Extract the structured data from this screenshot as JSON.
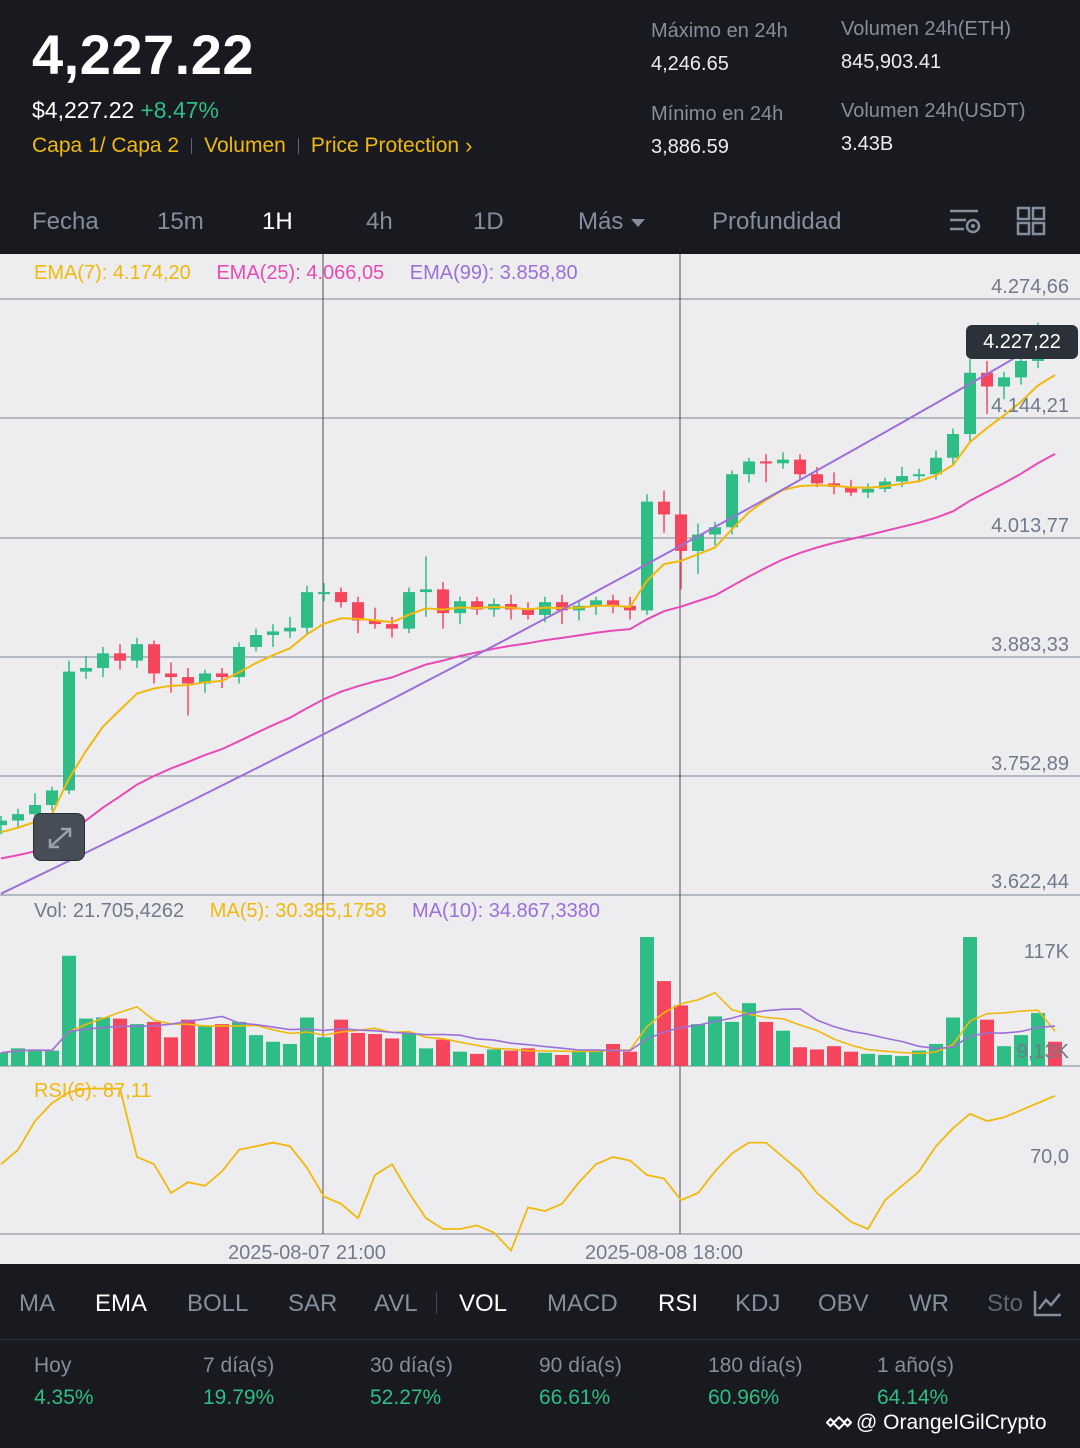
{
  "header": {
    "last_price": "4,227.22",
    "fiat_price": "$4,227.22",
    "change_pct": "+8.47%",
    "tags": [
      "Capa 1/ Capa 2",
      "Volumen",
      "Price Protection"
    ],
    "stats": {
      "high_label": "Máximo en 24h",
      "high_value": "4,246.65",
      "low_label": "Mínimo en 24h",
      "low_value": "3,886.59",
      "vol_eth_label": "Volumen 24h(ETH)",
      "vol_eth_value": "845,903.41",
      "vol_usdt_label": "Volumen 24h(USDT)",
      "vol_usdt_value": "3.43B"
    }
  },
  "time_tabs": [
    "Fecha",
    "15m",
    "1H",
    "4h",
    "1D",
    "Más",
    "Profundidad"
  ],
  "active_time_tab": "1H",
  "icons": [
    "chart-settings-icon",
    "grid-layout-icon",
    "expand-icon",
    "indicator-chart-icon",
    "binance-logo-icon"
  ],
  "colors": {
    "up": "#2ebd85",
    "down": "#f6465d",
    "ema7": "#f0b90b",
    "ema25": "#e84ab5",
    "ema99": "#9c6fd6",
    "accent": "#f0b90b"
  },
  "legends": {
    "ema7": "EMA(7): 4.174,20",
    "ema25": "EMA(25): 4.066,05",
    "ema99": "EMA(99): 3.858,80",
    "vol": "Vol: 21.705,4262",
    "ma5": "MA(5): 30.385,1758",
    "ma10": "MA(10): 34.867,3380",
    "rsi": "RSI(6): 87,11"
  },
  "price_axis": [
    "4.274,66",
    "4.144,21",
    "4.013,77",
    "3.883,33",
    "3.752,89",
    "3.622,44"
  ],
  "current_price_tag": "4.227,22",
  "vol_axis": [
    "117K",
    "9,13K"
  ],
  "rsi_axis": [
    "70,0"
  ],
  "time_axis": [
    "2025-08-07 21:00",
    "2025-08-08 18:00"
  ],
  "indicator_tabs": [
    "MA",
    "EMA",
    "BOLL",
    "SAR",
    "AVL",
    "VOL",
    "MACD",
    "RSI",
    "KDJ",
    "OBV",
    "WR",
    "Sto"
  ],
  "active_indicators": [
    "EMA",
    "VOL",
    "RSI"
  ],
  "performance": [
    {
      "label": "Hoy",
      "value": "4.35%"
    },
    {
      "label": "7 día(s)",
      "value": "19.79%"
    },
    {
      "label": "30 día(s)",
      "value": "52.27%"
    },
    {
      "label": "90 día(s)",
      "value": "66.61%"
    },
    {
      "label": "180 día(s)",
      "value": "60.96%"
    },
    {
      "label": "1 año(s)",
      "value": "64.14%"
    }
  ],
  "watermark": "@ OrangeIGilCrypto",
  "chart_data": {
    "type": "candlestick",
    "interval": "1H",
    "ylim": [
      3622.44,
      4274.66
    ],
    "candles": [
      [
        3700,
        3710,
        3690,
        3705
      ],
      [
        3705,
        3718,
        3698,
        3712
      ],
      [
        3712,
        3735,
        3705,
        3722
      ],
      [
        3722,
        3742,
        3716,
        3738
      ],
      [
        3738,
        3880,
        3734,
        3868
      ],
      [
        3868,
        3885,
        3860,
        3872
      ],
      [
        3872,
        3895,
        3862,
        3888
      ],
      [
        3888,
        3898,
        3870,
        3880
      ],
      [
        3880,
        3905,
        3872,
        3898
      ],
      [
        3898,
        3902,
        3855,
        3866
      ],
      [
        3866,
        3878,
        3845,
        3862
      ],
      [
        3862,
        3872,
        3820,
        3855
      ],
      [
        3855,
        3870,
        3845,
        3866
      ],
      [
        3866,
        3872,
        3850,
        3862
      ],
      [
        3862,
        3900,
        3855,
        3895
      ],
      [
        3895,
        3915,
        3890,
        3908
      ],
      [
        3908,
        3920,
        3895,
        3912
      ],
      [
        3912,
        3928,
        3905,
        3916
      ],
      [
        3916,
        3962,
        3910,
        3955
      ],
      [
        3955,
        3965,
        3945,
        3955
      ],
      [
        3955,
        3960,
        3938,
        3944
      ],
      [
        3944,
        3950,
        3910,
        3924
      ],
      [
        3924,
        3938,
        3915,
        3920
      ],
      [
        3920,
        3928,
        3905,
        3915
      ],
      [
        3915,
        3960,
        3910,
        3955
      ],
      [
        3955,
        3994,
        3928,
        3958
      ],
      [
        3958,
        3966,
        3915,
        3932
      ],
      [
        3932,
        3950,
        3920,
        3945
      ],
      [
        3945,
        3950,
        3930,
        3936
      ],
      [
        3936,
        3948,
        3928,
        3942
      ],
      [
        3942,
        3952,
        3925,
        3936
      ],
      [
        3936,
        3944,
        3925,
        3930
      ],
      [
        3930,
        3950,
        3922,
        3944
      ],
      [
        3944,
        3952,
        3920,
        3935
      ],
      [
        3935,
        3946,
        3924,
        3940
      ],
      [
        3940,
        3950,
        3930,
        3946
      ],
      [
        3946,
        3952,
        3932,
        3940
      ],
      [
        3940,
        3950,
        3925,
        3935
      ],
      [
        3935,
        4062,
        3930,
        4054
      ],
      [
        4054,
        4066,
        4020,
        4040
      ],
      [
        4040,
        4040,
        3958,
        4000
      ],
      [
        4000,
        4030,
        3975,
        4018
      ],
      [
        4018,
        4032,
        4006,
        4026
      ],
      [
        4026,
        4088,
        4018,
        4084
      ],
      [
        4084,
        4102,
        4075,
        4098
      ],
      [
        4098,
        4106,
        4075,
        4096
      ],
      [
        4096,
        4108,
        4090,
        4100
      ],
      [
        4100,
        4106,
        4078,
        4084
      ],
      [
        4084,
        4092,
        4070,
        4074
      ],
      [
        4074,
        4086,
        4062,
        4070
      ],
      [
        4070,
        4078,
        4060,
        4064
      ],
      [
        4064,
        4074,
        4058,
        4068
      ],
      [
        4068,
        4080,
        4064,
        4076
      ],
      [
        4076,
        4092,
        4070,
        4082
      ],
      [
        4082,
        4090,
        4075,
        4084
      ],
      [
        4084,
        4110,
        4078,
        4102
      ],
      [
        4102,
        4134,
        4095,
        4128
      ],
      [
        4128,
        4210,
        4118,
        4195
      ],
      [
        4195,
        4208,
        4150,
        4180
      ],
      [
        4180,
        4196,
        4166,
        4190
      ],
      [
        4190,
        4212,
        4182,
        4208
      ],
      [
        4208,
        4250,
        4200,
        4235
      ],
      [
        4235,
        4245,
        4222,
        4227
      ]
    ],
    "volumes": [
      12,
      16,
      15,
      14,
      100,
      43,
      44,
      43,
      38,
      40,
      26,
      42,
      36,
      38,
      40,
      28,
      22,
      20,
      44,
      26,
      42,
      30,
      29,
      25,
      30,
      16,
      24,
      13,
      11,
      15,
      14,
      16,
      12,
      10,
      14,
      15,
      20,
      13,
      117,
      77,
      55,
      38,
      45,
      40,
      57,
      40,
      32,
      17,
      15,
      18,
      13,
      11,
      10,
      9,
      14,
      20,
      44,
      117,
      42,
      18,
      28,
      48,
      22
    ],
    "rsi": [
      68,
      72,
      80,
      85,
      88,
      89,
      89,
      89,
      70,
      68,
      60,
      63,
      62,
      66,
      72,
      73,
      74,
      73,
      67,
      59,
      57,
      53,
      65,
      68,
      60,
      53,
      50,
      50,
      51,
      49,
      44,
      56,
      55,
      57,
      63,
      68,
      70,
      69,
      65,
      64,
      58,
      60,
      66,
      71,
      74,
      74,
      70,
      66,
      60,
      56,
      52,
      50,
      58,
      62,
      66,
      73,
      78,
      82,
      80,
      81,
      83,
      85,
      87
    ]
  }
}
